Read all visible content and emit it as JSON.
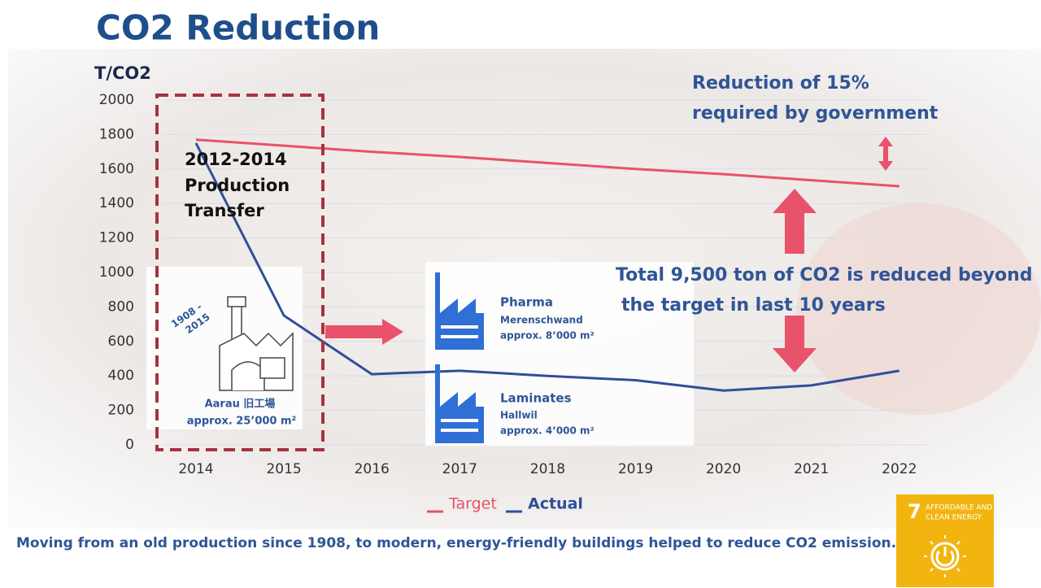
{
  "chart_data": {
    "type": "line",
    "title": "CO2 Reduction",
    "y_label": "T/CO2",
    "categories": [
      "2014",
      "2015",
      "2016",
      "2017",
      "2018",
      "2019",
      "2020",
      "2021",
      "2022"
    ],
    "series": [
      {
        "name": "Target",
        "color": "#e8526a",
        "values": [
          1770,
          1735,
          1700,
          1670,
          1635,
          1600,
          1570,
          1535,
          1500
        ]
      },
      {
        "name": "Actual",
        "color": "#2f4f9a",
        "values": [
          1750,
          750,
          410,
          430,
          400,
          375,
          315,
          345,
          430
        ]
      }
    ],
    "ylim": [
      0,
      2000
    ],
    "yticks": [
      0,
      200,
      400,
      600,
      800,
      1000,
      1200,
      1400,
      1600,
      1800,
      2000
    ],
    "grid": true,
    "annotations": {
      "government": [
        "Reduction of 15%",
        "required by government"
      ],
      "total": [
        "Total 9,500 ton of CO2 is reduced beyond",
        "the target in last 10 years"
      ],
      "transfer": [
        "2012-2014",
        "Production",
        "Transfer"
      ],
      "old_period": [
        "1908 -",
        "2015"
      ],
      "old_site": [
        "Aarau  旧工場",
        "approx. 25’000 m²"
      ],
      "pharma": [
        "Pharma",
        "Merenschwand",
        "approx.  8’000 m²"
      ],
      "laminates": [
        "Laminates",
        "Hallwil",
        "approx. 4’000 m²"
      ]
    }
  },
  "footer": "Moving from an old production since 1908, to modern, energy-friendly buildings helped to reduce CO2 emission.",
  "sdg": {
    "number": "7",
    "label": [
      "AFFORDABLE AND",
      "CLEAN ENERGY"
    ]
  }
}
